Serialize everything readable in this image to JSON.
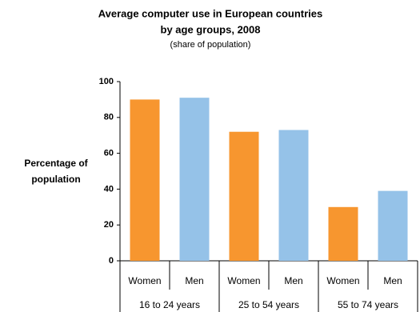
{
  "chart_data": {
    "type": "bar",
    "title": [
      "Average computer use in European countries",
      "by age groups, 2008"
    ],
    "subtitle": "(share of population)",
    "y_label": [
      "Percentage of",
      "population"
    ],
    "categories": [
      "16 to 24 years",
      "25 to 54 years",
      "55 to 74 years"
    ],
    "series": [
      {
        "name": "Women",
        "color": "#f7962f",
        "values": [
          90,
          72,
          30
        ]
      },
      {
        "name": "Men",
        "color": "#95c2e8",
        "values": [
          91,
          73,
          39
        ]
      }
    ],
    "ylim": [
      0,
      100
    ],
    "yticks": [
      0,
      20,
      40,
      60,
      80,
      100
    ],
    "grid": false
  }
}
